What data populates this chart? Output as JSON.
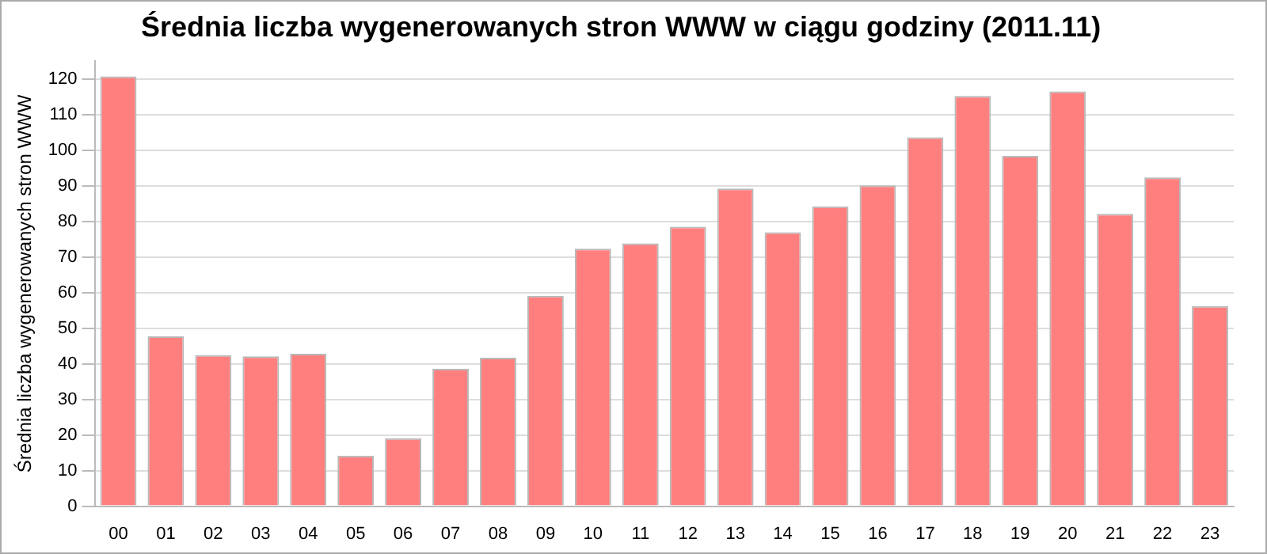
{
  "chart_data": {
    "type": "bar",
    "title": "Średnia liczba wygenerowanych stron WWW w ciągu godziny (2011.11)",
    "ylabel": "Średnia liczba wygenerowanych stron WWW",
    "categories": [
      "00",
      "01",
      "02",
      "03",
      "04",
      "05",
      "06",
      "07",
      "08",
      "09",
      "10",
      "11",
      "12",
      "13",
      "14",
      "15",
      "16",
      "17",
      "18",
      "19",
      "20",
      "21",
      "22",
      "23"
    ],
    "values": [
      120.7,
      47.7,
      42.4,
      42.1,
      42.8,
      14.2,
      19.1,
      38.6,
      41.7,
      59.1,
      72.3,
      73.8,
      78.5,
      89.2,
      76.9,
      84.2,
      90.1,
      103.6,
      115.2,
      98.4,
      116.5,
      82.1,
      92.3,
      56.2
    ],
    "color": "#ff7f7f",
    "ylim": [
      0,
      125
    ],
    "yticks": [
      0,
      10,
      20,
      30,
      40,
      50,
      60,
      70,
      80,
      90,
      100,
      110,
      120
    ],
    "grid": "y",
    "legend": false
  }
}
